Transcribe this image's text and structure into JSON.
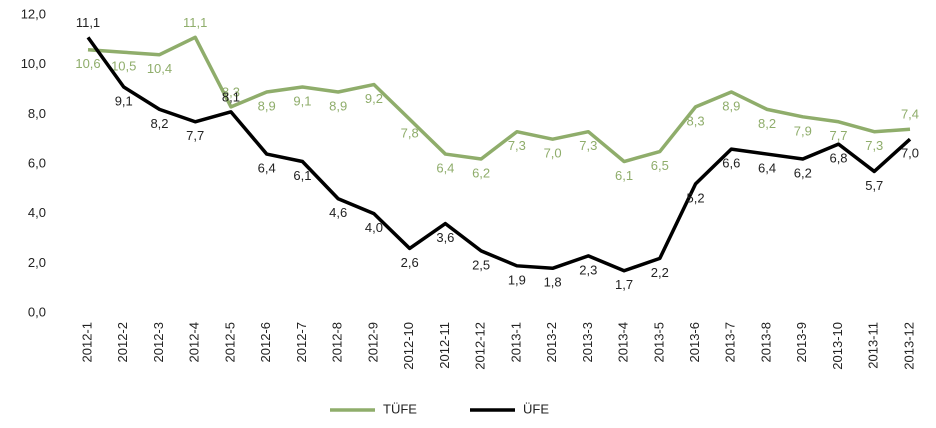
{
  "chart_data": {
    "type": "line",
    "categories": [
      "2012-1",
      "2012-2",
      "2012-3",
      "2012-4",
      "2012-5",
      "2012-6",
      "2012-7",
      "2012-8",
      "2012-9",
      "2012-10",
      "2012-11",
      "2012-12",
      "2013-1",
      "2013-2",
      "2013-3",
      "2013-4",
      "2013-5",
      "2013-6",
      "2013-7",
      "2013-8",
      "2013-9",
      "2013-10",
      "2013-11",
      "2013-12"
    ],
    "series": [
      {
        "name": "TÜFE",
        "color": "#8fad6b",
        "values": [
          10.6,
          10.5,
          10.4,
          11.1,
          8.3,
          8.9,
          9.1,
          8.9,
          9.2,
          7.8,
          6.4,
          6.2,
          7.3,
          7.0,
          7.3,
          6.1,
          6.5,
          8.3,
          8.9,
          8.2,
          7.9,
          7.7,
          7.3,
          7.4
        ],
        "value_labels": [
          "10,6",
          "10,5",
          "10,4",
          "11,1",
          "8,3",
          "8,9",
          "9,1",
          "8,9",
          "9,2",
          "7,8",
          "6,4",
          "6,2",
          "7,3",
          "7,0",
          "7,3",
          "6,1",
          "6,5",
          "8,3",
          "8,9",
          "8,2",
          "7,9",
          "7,7",
          "7,3",
          "7,4"
        ]
      },
      {
        "name": "ÜFE",
        "color": "#000000",
        "values": [
          11.1,
          9.1,
          8.2,
          7.7,
          8.1,
          6.4,
          6.1,
          4.6,
          4.0,
          2.6,
          3.6,
          2.5,
          1.9,
          1.8,
          2.3,
          1.7,
          2.2,
          5.2,
          6.6,
          6.4,
          6.2,
          6.8,
          5.7,
          7.0
        ],
        "value_labels": [
          "11,1",
          "9,1",
          "8,2",
          "7,7",
          "8,1",
          "6,4",
          "6,1",
          "4,6",
          "4,0",
          "2,6",
          "3,6",
          "2,5",
          "1,9",
          "1,8",
          "2,3",
          "1,7",
          "2,2",
          "5,2",
          "6,6",
          "6,4",
          "6,2",
          "6,8",
          "5,7",
          "7,0"
        ]
      }
    ],
    "ylim": [
      0,
      12
    ],
    "yticks": [
      {
        "value": 0,
        "label": "0,0"
      },
      {
        "value": 2,
        "label": "2,0"
      },
      {
        "value": 4,
        "label": "4,0"
      },
      {
        "value": 6,
        "label": "6,0"
      },
      {
        "value": 8,
        "label": "8,0"
      },
      {
        "value": 10,
        "label": "10,0"
      },
      {
        "value": 12,
        "label": "12,0"
      }
    ],
    "grid": false,
    "legend": "bottom"
  }
}
